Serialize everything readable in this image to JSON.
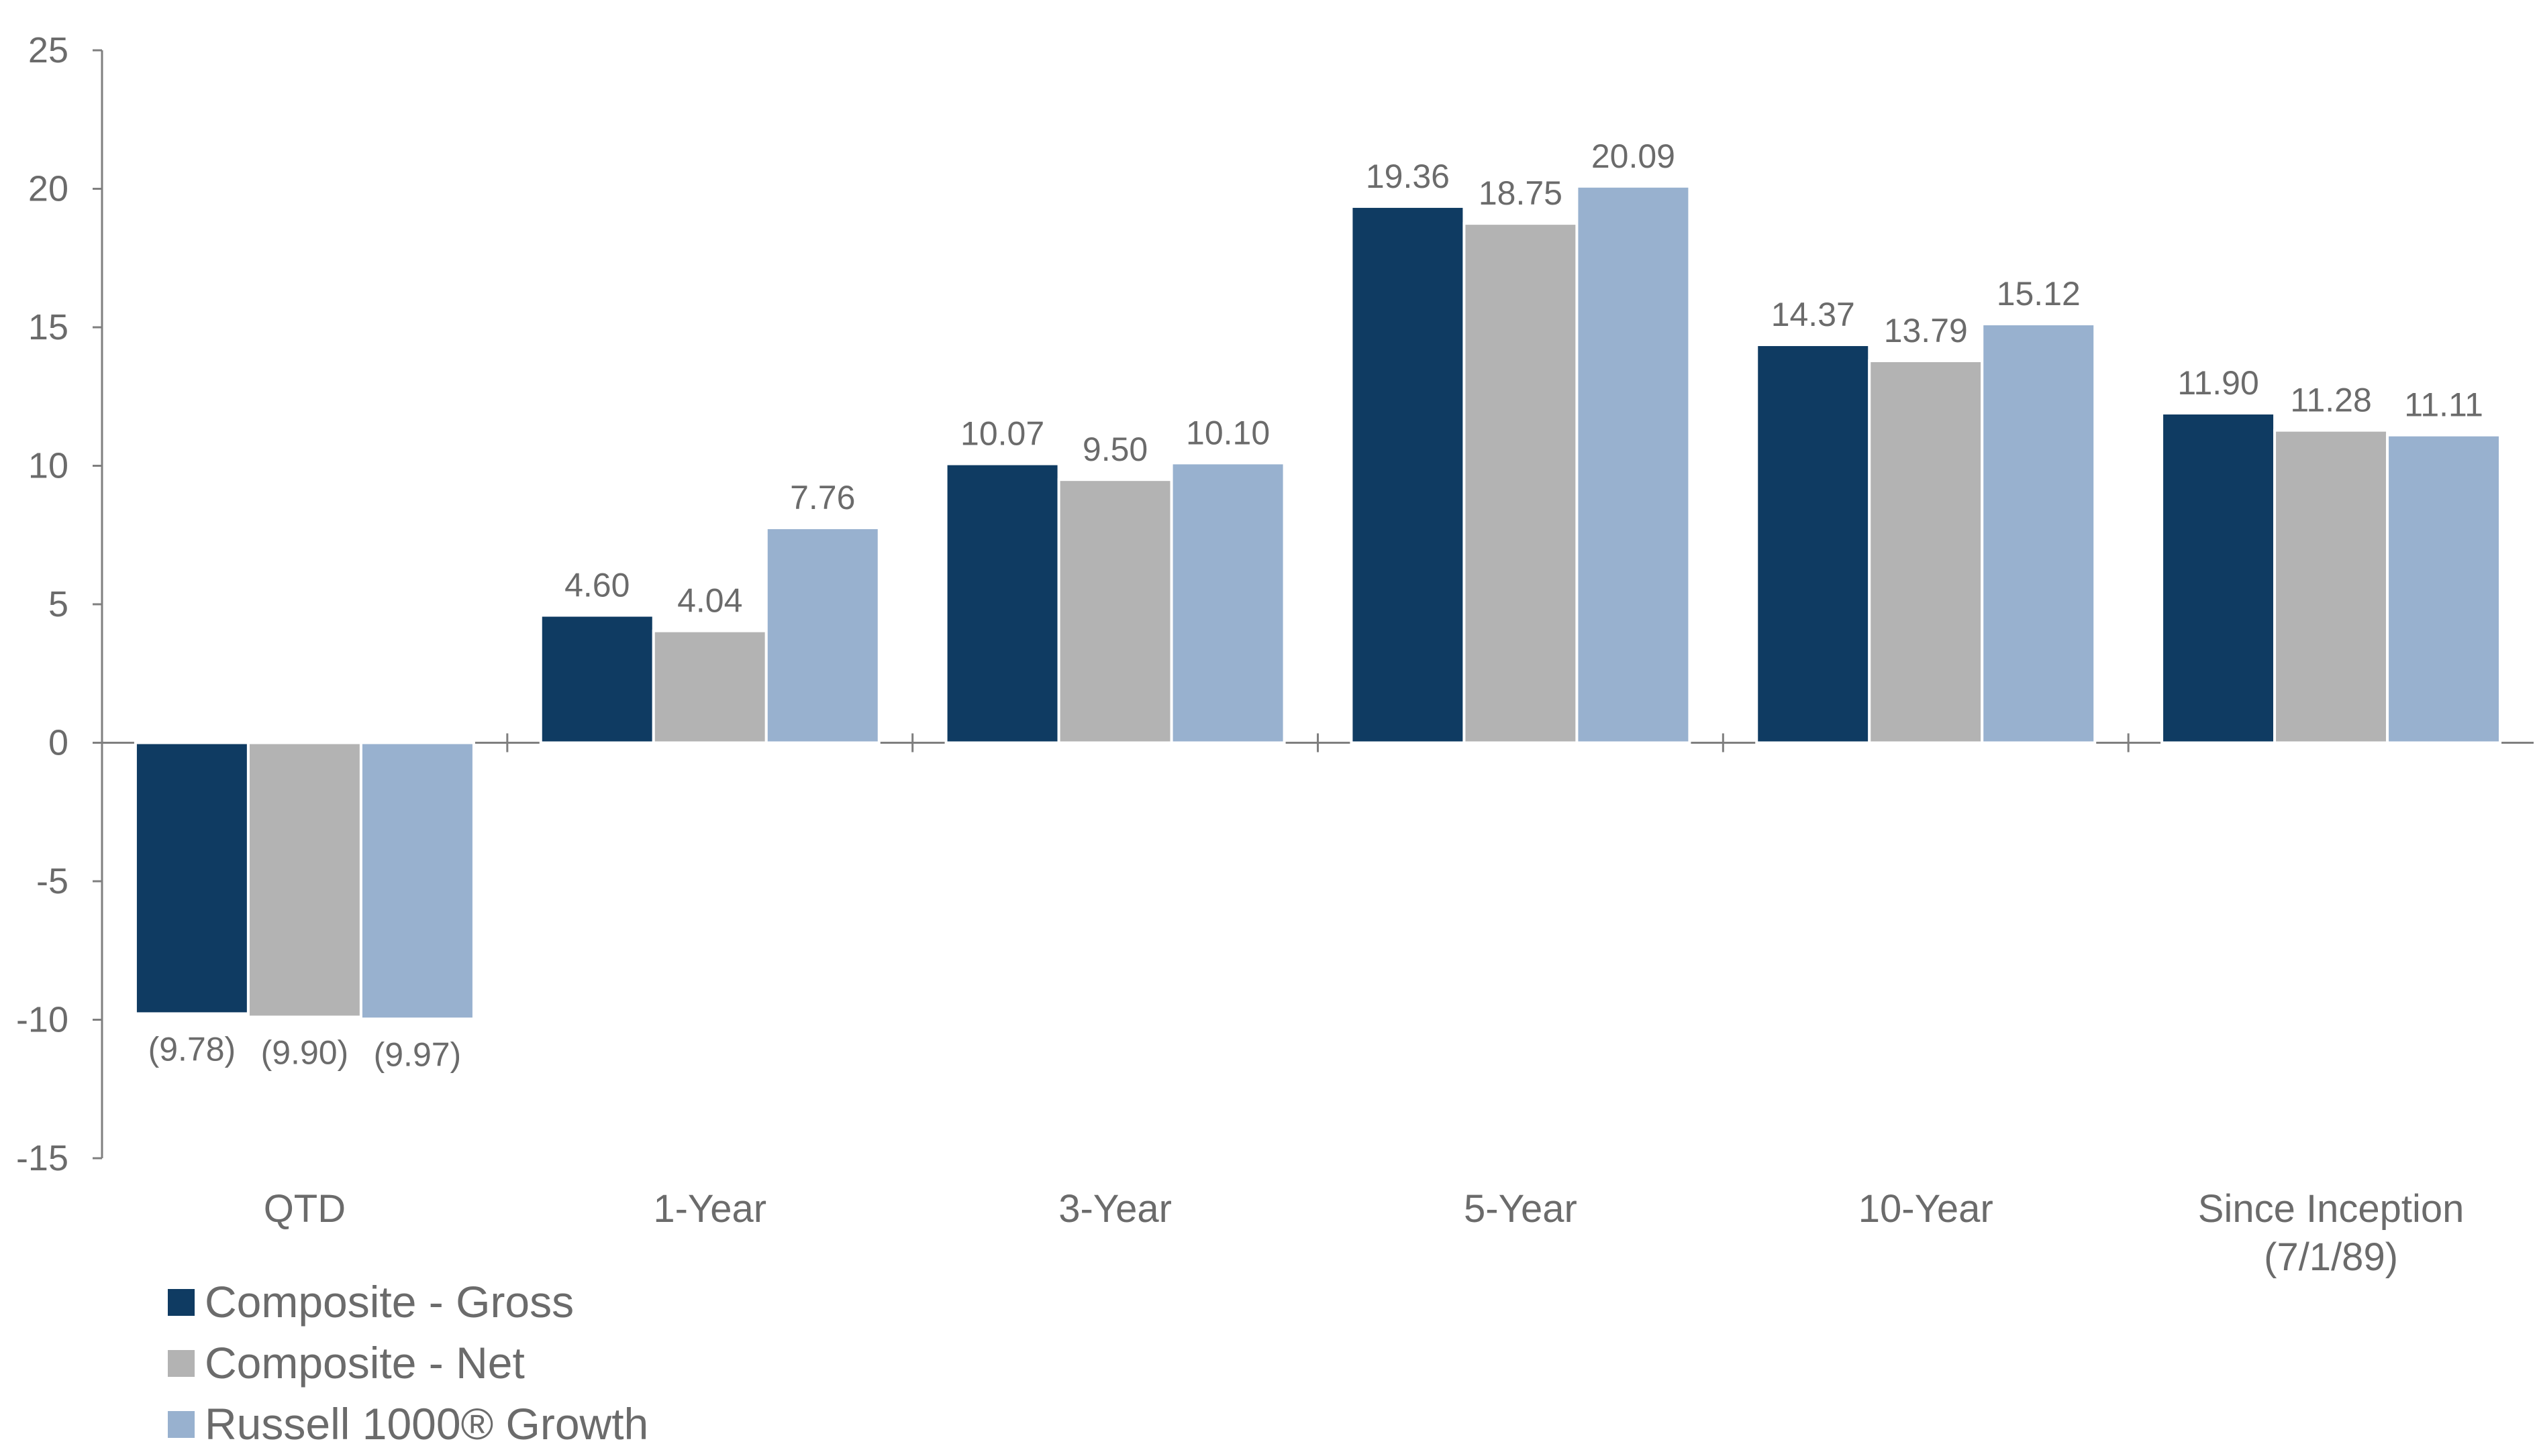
{
  "chart_data": {
    "type": "bar",
    "categories": [
      "QTD",
      "1-Year",
      "3-Year",
      "5-Year",
      "10-Year",
      "Since Inception (7/1/89)"
    ],
    "category_lines": [
      [
        "QTD"
      ],
      [
        "1-Year"
      ],
      [
        "3-Year"
      ],
      [
        "5-Year"
      ],
      [
        "10-Year"
      ],
      [
        "Since Inception",
        "(7/1/89)"
      ]
    ],
    "series": [
      {
        "name": "Composite - Gross",
        "color": "#0f3b62",
        "values": [
          -9.78,
          4.6,
          10.07,
          19.36,
          14.37,
          11.9
        ],
        "labels": [
          "(9.78)",
          "4.60",
          "10.07",
          "19.36",
          "14.37",
          "11.90"
        ]
      },
      {
        "name": "Composite - Net",
        "color": "#b3b3b3",
        "values": [
          -9.9,
          4.04,
          9.5,
          18.75,
          13.79,
          11.28
        ],
        "labels": [
          "(9.90)",
          "4.04",
          "9.50",
          "18.75",
          "13.79",
          "11.28"
        ]
      },
      {
        "name": "Russell 1000® Growth",
        "color": "#98b1cf",
        "values": [
          -9.97,
          7.76,
          10.1,
          20.09,
          15.12,
          11.11
        ],
        "labels": [
          "(9.97)",
          "7.76",
          "10.10",
          "20.09",
          "15.12",
          "11.11"
        ]
      }
    ],
    "ylim": [
      -15,
      25
    ],
    "yticks": [
      "-15",
      "-10",
      "-5",
      "0",
      "5",
      "10",
      "15",
      "20",
      "25"
    ],
    "title": "",
    "xlabel": "",
    "ylabel": "",
    "legend_position": "bottom-left",
    "grid": false
  }
}
